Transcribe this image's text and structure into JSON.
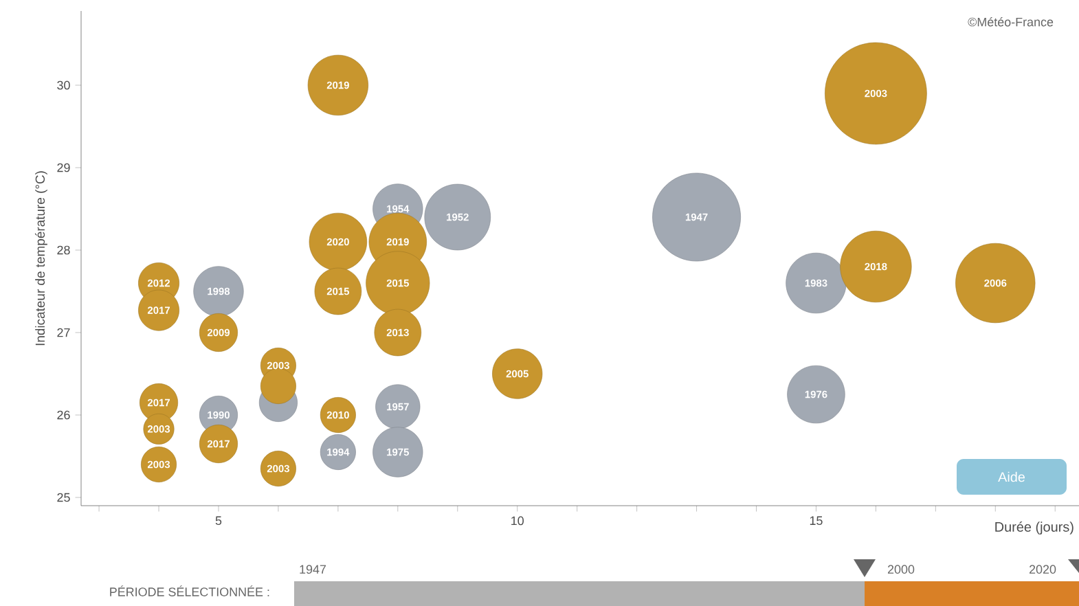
{
  "chart_data": {
    "type": "bubble",
    "ylabel": "Indicateur de température (°C)",
    "xlabel": "Durée (jours)",
    "xlim": [
      2.7,
      19.4
    ],
    "ylim": [
      24.9,
      30.9
    ],
    "xticks": [
      {
        "value": 3,
        "label": null
      },
      {
        "value": 4,
        "label": null
      },
      5,
      {
        "value": 6,
        "label": null
      },
      {
        "value": 7,
        "label": null
      },
      {
        "value": 8,
        "label": null
      },
      {
        "value": 9,
        "label": null
      },
      10,
      {
        "value": 11,
        "label": null
      },
      {
        "value": 12,
        "label": null
      },
      {
        "value": 13,
        "label": null
      },
      {
        "value": 14,
        "label": null
      },
      15,
      {
        "value": 16,
        "label": null
      },
      {
        "value": 17,
        "label": null
      },
      {
        "value": 18,
        "label": null
      },
      {
        "value": 19,
        "label": null
      }
    ],
    "yticks": [
      25,
      26,
      27,
      28,
      29,
      30
    ],
    "grid": false,
    "series": [
      {
        "color": "#a2a9b3",
        "x": [
          8,
          9,
          13,
          5,
          15,
          15,
          6,
          5,
          8,
          7,
          8
        ],
        "values": [
          28.5,
          28.4,
          28.4,
          27.5,
          27.6,
          26.25,
          26.15,
          26.0,
          26.1,
          25.55,
          25.55
        ],
        "sizes": [
          0.24,
          0.42,
          0.75,
          0.24,
          0.35,
          0.32,
          0.14,
          0.14,
          0.19,
          0.12,
          0.24
        ]
      },
      {
        "color": "#c8962e",
        "x": [
          7,
          16,
          7,
          8,
          7,
          8,
          8,
          4,
          4,
          5,
          10,
          16,
          18,
          6,
          6,
          4,
          4,
          5,
          6,
          7,
          4
        ],
        "values": [
          30.0,
          29.9,
          28.1,
          28.1,
          27.5,
          27.6,
          27.0,
          27.6,
          27.27,
          27.0,
          26.5,
          27.8,
          27.6,
          26.6,
          26.35,
          26.15,
          25.83,
          25.65,
          25.35,
          26.0,
          25.4
        ],
        "sizes": [
          0.35,
          1,
          0.32,
          0.32,
          0.21,
          0.39,
          0.21,
          0.16,
          0.16,
          0.14,
          0.24,
          0.49,
          0.61,
          0.12,
          0.12,
          0.14,
          0.09,
          0.14,
          0.12,
          0.12,
          0.12
        ]
      }
    ],
    "annotations": [
      "©Météo-France",
      "Aide",
      "PÉRIODE SÉLECTIONNÉE :",
      "1947",
      "2000",
      "2020",
      {
        "text": "1954",
        "x": 8,
        "y": 28.5
      },
      {
        "text": "1952",
        "x": 9,
        "y": 28.4
      },
      {
        "text": "1947",
        "x": 13,
        "y": 28.4
      },
      {
        "text": "1998",
        "x": 5,
        "y": 27.5
      },
      {
        "text": "1983",
        "x": 15,
        "y": 27.6
      },
      {
        "text": "1976",
        "x": 15,
        "y": 26.25
      },
      {
        "text": "1990",
        "x": 5,
        "y": 26.0
      },
      {
        "text": "1957",
        "x": 8,
        "y": 26.1
      },
      {
        "text": "1994",
        "x": 7,
        "y": 25.55
      },
      {
        "text": "1975",
        "x": 8,
        "y": 25.55
      },
      {
        "text": "2019",
        "x": 7,
        "y": 30.0
      },
      {
        "text": "2003",
        "x": 16,
        "y": 29.9
      },
      {
        "text": "2020",
        "x": 7,
        "y": 28.1
      },
      {
        "text": "2019",
        "x": 8,
        "y": 28.1
      },
      {
        "text": "2015",
        "x": 7,
        "y": 27.5
      },
      {
        "text": "2015",
        "x": 8,
        "y": 27.6
      },
      {
        "text": "2013",
        "x": 8,
        "y": 27.0
      },
      {
        "text": "2012",
        "x": 4,
        "y": 27.6
      },
      {
        "text": "2017",
        "x": 4,
        "y": 27.27
      },
      {
        "text": "2009",
        "x": 5,
        "y": 27.0
      },
      {
        "text": "2005",
        "x": 10,
        "y": 26.5
      },
      {
        "text": "2018",
        "x": 16,
        "y": 27.8
      },
      {
        "text": "2006",
        "x": 18,
        "y": 27.6
      },
      {
        "text": "2003",
        "x": 6,
        "y": 26.6
      },
      {
        "text": "2017",
        "x": 4,
        "y": 26.15
      },
      {
        "text": "2003",
        "x": 4,
        "y": 25.83
      },
      {
        "text": "2017",
        "x": 5,
        "y": 25.65
      },
      {
        "text": "2003",
        "x": 6,
        "y": 25.35
      },
      {
        "text": "2010",
        "x": 7,
        "y": 26.0
      },
      {
        "text": "2003",
        "x": 4,
        "y": 25.4
      }
    ]
  }
}
